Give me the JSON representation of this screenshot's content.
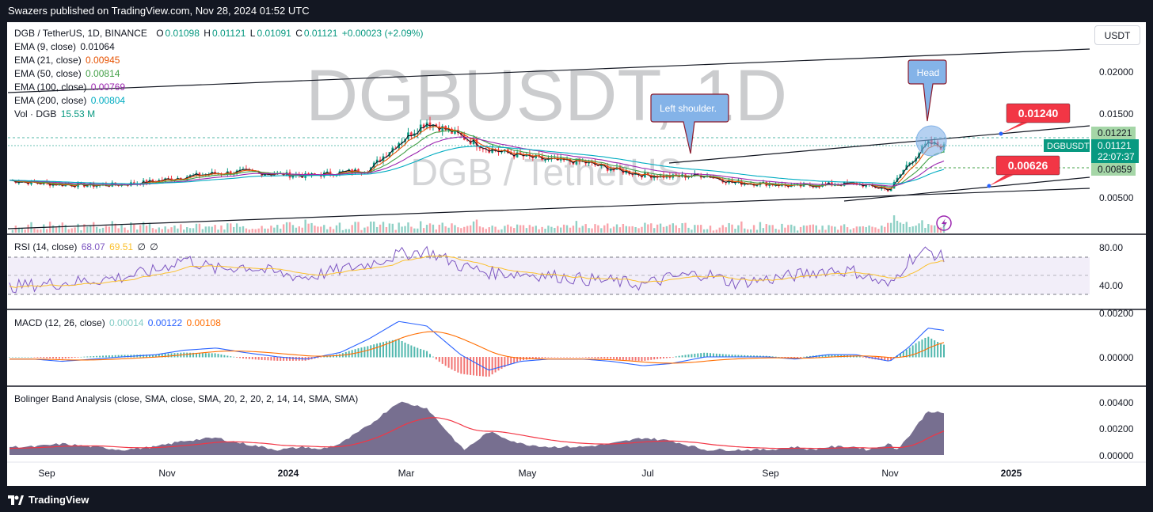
{
  "header": {
    "publish_text": "Swazers published on TradingView.com, Nov 28, 2024 01:52 UTC"
  },
  "footer": {
    "brand": "TradingView"
  },
  "currency_button": "USDT",
  "colors": {
    "up": "#089981",
    "down": "#f23645",
    "ema9": "#131722",
    "ema21": "#e65100",
    "ema50": "#43a047",
    "ema100": "#9c27b0",
    "ema200": "#00acc1",
    "rsi": "#7e57c2",
    "rsi_ma": "#fbc02d",
    "macd": "#2962ff",
    "signal": "#ff6d00",
    "bb": "#4a3f6b",
    "bb_ma": "#f23645",
    "callout": "#84b3e8",
    "price_tag": "#f23645"
  },
  "legend": {
    "symbol": "DGB / TetherUS, 1D, BINANCE",
    "ohlc": {
      "o_label": "O",
      "o": "0.01098",
      "h_label": "H",
      "h": "0.01121",
      "l_label": "L",
      "l": "0.01091",
      "c_label": "C",
      "c": "0.01121",
      "change": "+0.00023 (+2.09%)"
    },
    "emas": [
      {
        "label": "EMA (9, close)",
        "value": "0.01064"
      },
      {
        "label": "EMA (21, close)",
        "value": "0.00945"
      },
      {
        "label": "EMA (50, close)",
        "value": "0.00814"
      },
      {
        "label": "EMA (100, close)",
        "value": "0.00769"
      },
      {
        "label": "EMA (200, close)",
        "value": "0.00804"
      }
    ],
    "volume": {
      "label": "Vol · DGB",
      "value": "15.53 M"
    }
  },
  "watermark": {
    "ticker": "DGBUSDT, 1D",
    "name": "DGB / TetherUS"
  },
  "annotations": {
    "left_shoulder": "Left shoulder.",
    "head": "Head",
    "target_high": "0.01240",
    "target_low": "0.00626"
  },
  "price_axis": {
    "ticks": [
      "0.02000",
      "0.01500",
      "0.00500"
    ],
    "tag_upper": "0.01221",
    "tag_symbol": "DGBUSDT",
    "tag_last": "0.01121",
    "tag_countdown": "22:07:37",
    "tag_lower": "0.00859"
  },
  "rsi_panel": {
    "label": "RSI (14, close)",
    "rsi": "68.07",
    "rsi_ma": "69.51",
    "extra1": "∅",
    "extra2": "∅",
    "ticks": [
      "80.00",
      "40.00"
    ]
  },
  "macd_panel": {
    "label": "MACD (12, 26, close)",
    "hist": "0.00014",
    "macd": "0.00122",
    "signal": "0.00108",
    "ticks": [
      "0.00200",
      "0.00000"
    ]
  },
  "bb_panel": {
    "label": "Bolinger Band Analysis (close, SMA, close, SMA, 20, 2, 20, 2, 14, 14, SMA, SMA)",
    "ticks": [
      "0.00400",
      "0.00200",
      "0.00000"
    ]
  },
  "time_axis": {
    "labels": [
      "Sep",
      "Nov",
      "2024",
      "Mar",
      "May",
      "Jul",
      "Sep",
      "Nov",
      "2025"
    ]
  },
  "chart_data": {
    "type": "line",
    "title": "DGB / TetherUS, 1D, BINANCE",
    "x": [
      "2023-08-20",
      "2023-09-01",
      "2023-09-15",
      "2023-10-01",
      "2023-10-15",
      "2023-11-01",
      "2023-11-15",
      "2023-12-01",
      "2023-12-15",
      "2024-01-01",
      "2024-01-15",
      "2024-02-01",
      "2024-02-15",
      "2024-03-01",
      "2024-03-15",
      "2024-04-01",
      "2024-04-15",
      "2024-05-01",
      "2024-05-15",
      "2024-06-01",
      "2024-06-15",
      "2024-07-01",
      "2024-07-15",
      "2024-08-01",
      "2024-08-15",
      "2024-09-01",
      "2024-09-15",
      "2024-10-01",
      "2024-10-15",
      "2024-11-01",
      "2024-11-10",
      "2024-11-20",
      "2024-11-28"
    ],
    "series": [
      {
        "name": "DGB / TetherUS",
        "values": [
          0.0074,
          0.0071,
          0.0069,
          0.0068,
          0.0069,
          0.0073,
          0.0078,
          0.0082,
          0.0084,
          0.0081,
          0.0079,
          0.0083,
          0.0086,
          0.0118,
          0.0142,
          0.0125,
          0.011,
          0.0102,
          0.0097,
          0.0095,
          0.0087,
          0.008,
          0.0078,
          0.008,
          0.0071,
          0.007,
          0.0067,
          0.0069,
          0.007,
          0.0063,
          0.0093,
          0.0117,
          0.0112
        ]
      },
      {
        "name": "RSI (14, close)",
        "values": [
          38,
          40,
          42,
          45,
          48,
          55,
          68,
          56,
          60,
          52,
          48,
          56,
          62,
          72,
          76,
          60,
          53,
          52,
          50,
          46,
          44,
          40,
          48,
          52,
          42,
          46,
          50,
          56,
          54,
          38,
          66,
          76,
          68
        ]
      },
      {
        "name": "MACD (12, 26, close)",
        "values": [
          -0.0001,
          -0.0001,
          -0.0002,
          -0.0001,
          0.0,
          0.0001,
          0.0003,
          0.0004,
          0.0002,
          0.0,
          -0.0001,
          0.0002,
          0.0008,
          0.0016,
          0.0014,
          0.0001,
          -0.0006,
          -0.0002,
          -0.0001,
          -0.0001,
          -0.0002,
          -0.0004,
          -0.0003,
          0.0,
          0.0,
          0.0,
          -0.0001,
          0.0001,
          0.0001,
          -0.0002,
          0.0004,
          0.0013,
          0.0012
        ]
      }
    ],
    "ylabel": "",
    "y_ticks": [
      0.005,
      0.015,
      0.02
    ],
    "last_price": 0.01121,
    "targets": [
      0.0124,
      0.00626
    ],
    "grid": false,
    "legend": "top-left"
  }
}
